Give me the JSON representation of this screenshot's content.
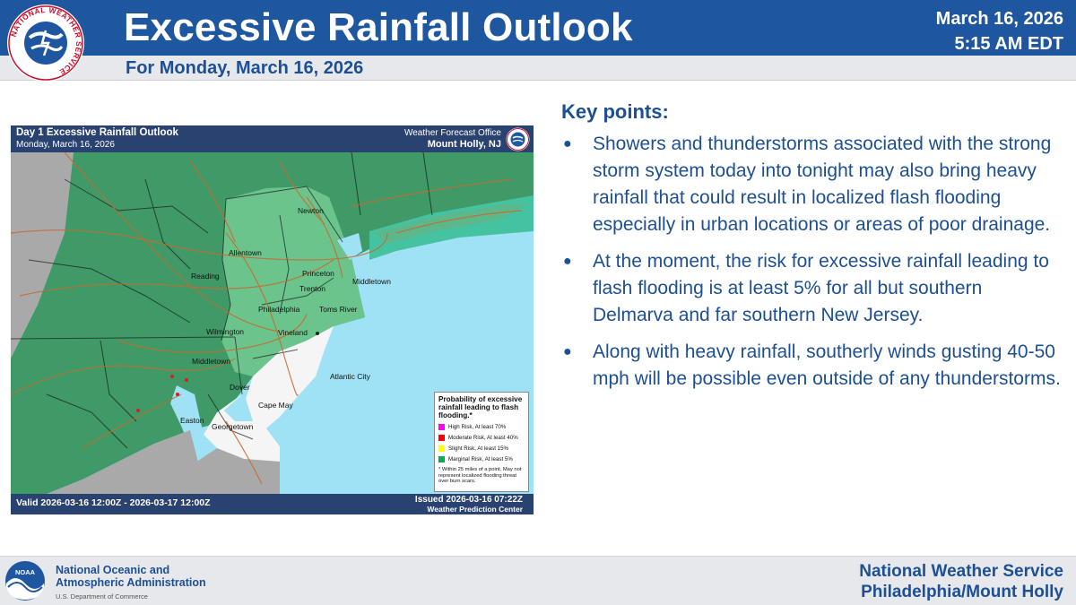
{
  "header": {
    "title": "Excessive Rainfall Outlook",
    "subtitle": "For Monday, March 16, 2026",
    "date": "March 16, 2026",
    "time": "5:15 AM EDT",
    "logo_text": "NATIONAL WEATHER SERVICE",
    "brand_color": "#1e56a0"
  },
  "map": {
    "title": "Day 1 Excessive Rainfall Outlook",
    "date": "Monday, March 16, 2026",
    "office_label": "Weather Forecast Office",
    "office_name": "Mount Holly, NJ",
    "valid": "Valid 2026-03-16 12:00Z - 2026-03-17 12:00Z",
    "issued": "Issued 2026-03-16 07:22Z",
    "source": "Weather Prediction Center",
    "cities": [
      "Newton",
      "Allentown",
      "Reading",
      "Princeton",
      "Trenton",
      "Middletown",
      "Philadelphia",
      "Toms River",
      "Wilmington",
      "Vineland",
      "Middletown",
      "Atlantic City",
      "Dover",
      "Cape May",
      "Easton",
      "Georgetown"
    ],
    "legend": {
      "title": "Probability of excessive rainfall leading to flash flooding.*",
      "items": [
        {
          "label": "High Risk, At least 70%",
          "color": "#ff00ff"
        },
        {
          "label": "Moderate Risk, At least 40%",
          "color": "#ff0000"
        },
        {
          "label": "Slight Risk, At least 15%",
          "color": "#ffff00"
        },
        {
          "label": "Marginal Risk, At least 5%",
          "color": "#00b050"
        }
      ],
      "note": "* Within 25 miles of a point. May not represent localized flooding threat over burn scars."
    }
  },
  "key_points": {
    "heading": "Key points:",
    "items": [
      "Showers and thunderstorms associated with the strong storm system today into tonight may also bring heavy rainfall that could result in localized flash flooding especially in urban locations or areas of poor drainage.",
      "At the moment, the risk for excessive rainfall leading to flash flooding is at least 5% for all but southern Delmarva and far southern New Jersey.",
      "Along with heavy rainfall, southerly winds gusting 40-50 mph will be possible even outside of any thunderstorms."
    ]
  },
  "footer": {
    "noaa_logo_text": "NOAA",
    "noaa_line1": "National Oceanic and",
    "noaa_line2": "Atmospheric Administration",
    "noaa_dept": "U.S. Department of Commerce",
    "nws_line1": "National Weather Service",
    "nws_line2": "Philadelphia/Mount Holly"
  }
}
